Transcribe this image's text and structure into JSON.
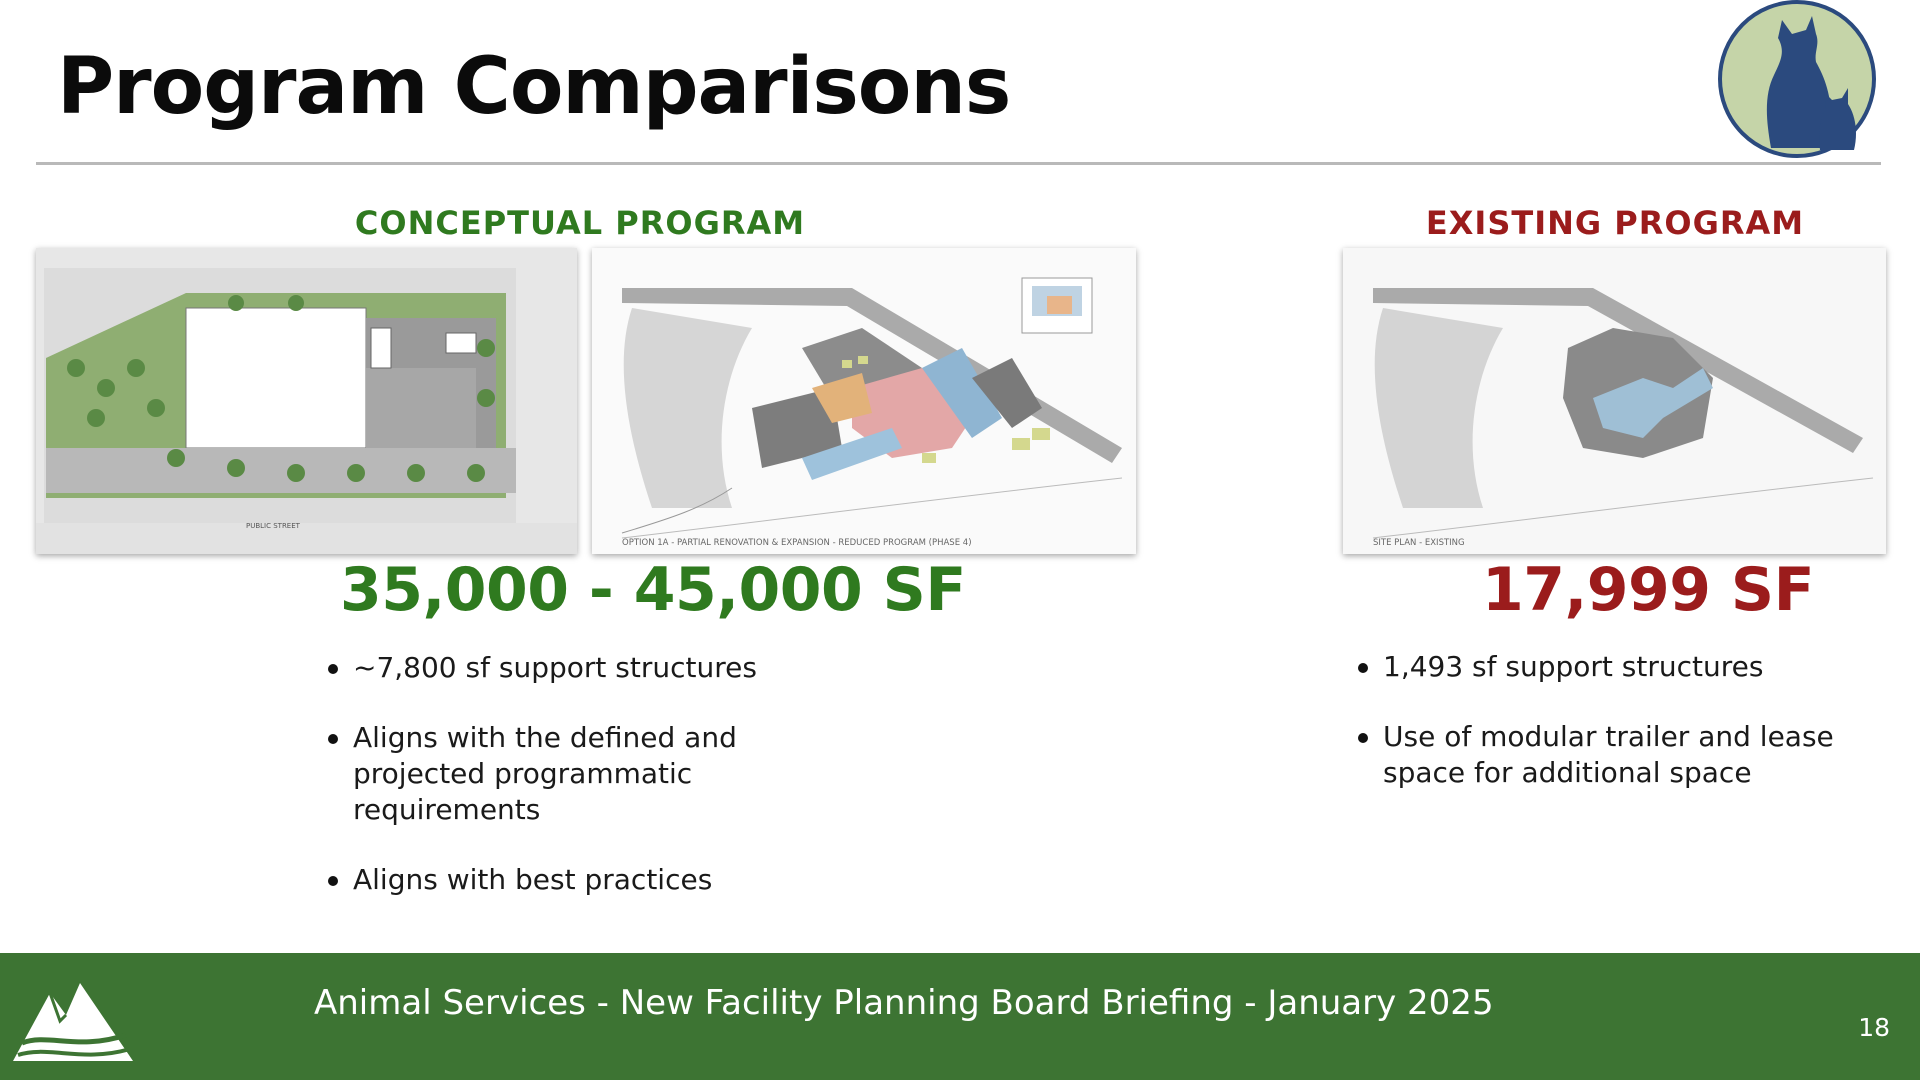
{
  "title": "Program Comparisons",
  "conceptual": {
    "heading": "CONCEPTUAL PROGRAM",
    "area": "35,000 - 45,000 SF",
    "bullets": [
      "~7,800 sf support structures",
      "Aligns with the defined and projected programmatic requirements",
      "Aligns with best practices"
    ],
    "plan1_caption": "PUBLIC STREET",
    "plan2_caption": "OPTION 1A - PARTIAL RENOVATION & EXPANSION - REDUCED PROGRAM (PHASE 4)"
  },
  "existing": {
    "heading": "EXISTING PROGRAM",
    "area": "17,999 SF",
    "bullets": [
      "1,493 sf support structures",
      "Use of modular trailer and lease space for additional space"
    ],
    "plan_caption": "SITE PLAN - EXISTING"
  },
  "footer": {
    "text": "Animal Services - New Facility Planning Board Briefing - January 2025",
    "page_number": "18"
  },
  "colors": {
    "accent_green": "#2f7a1f",
    "accent_red": "#9b1c1c",
    "footer_bg": "#3d7433",
    "logo_circle": "#c5d4a8",
    "logo_figure": "#2b4a7e"
  },
  "icons": {
    "logo": "dog-cat-silhouette-logo",
    "footer_logo": "mountain-logo"
  }
}
